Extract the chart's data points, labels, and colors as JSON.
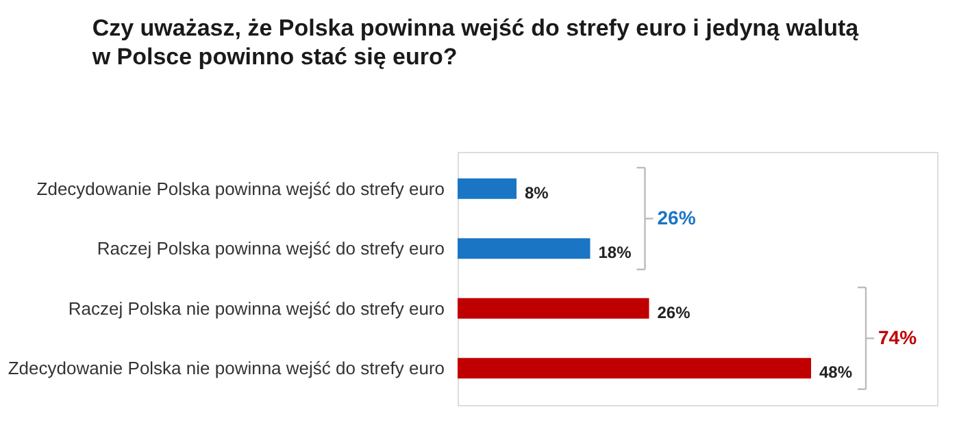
{
  "chart_data": {
    "type": "bar",
    "orientation": "horizontal",
    "title": [
      "Czy uważasz, że Polska powinna wejść do strefy euro i jedyną walutą",
      "w Polsce powinno stać się euro?"
    ],
    "categories": [
      "Zdecydowanie Polska powinna wejść do strefy euro",
      "Raczej Polska powinna wejść do strefy euro",
      "Raczej Polska nie powinna wejść do strefy euro",
      "Zdecydowanie Polska nie powinna wejść do strefy euro"
    ],
    "values": [
      8,
      18,
      26,
      48
    ],
    "colors": [
      "#1a75c4",
      "#1a75c4",
      "#c00000",
      "#c00000"
    ],
    "value_labels": [
      "8%",
      "18%",
      "26%",
      "48%"
    ],
    "annotations": [
      "26%",
      "74%"
    ],
    "grid": false
  }
}
